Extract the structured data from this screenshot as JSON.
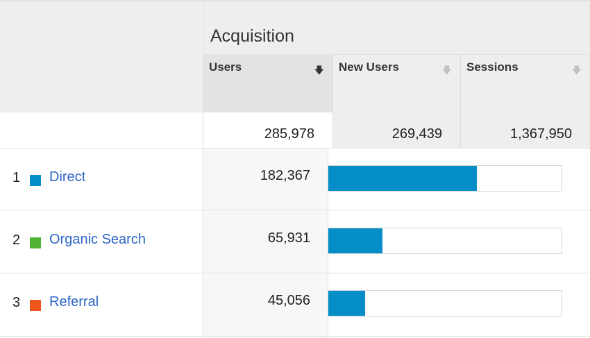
{
  "header": {
    "group_title": "Acquisition",
    "columns": [
      {
        "label": "Users",
        "sort_icon": "arrow-down-icon",
        "active": true
      },
      {
        "label": "New Users",
        "sort_icon": "arrow-down-icon",
        "active": false
      },
      {
        "label": "Sessions",
        "sort_icon": "arrow-down-icon",
        "active": false
      }
    ]
  },
  "totals": {
    "users": "285,978",
    "new_users": "269,439",
    "sessions": "1,367,950"
  },
  "rows": [
    {
      "rank": "1",
      "channel": "Direct",
      "users": "182,367",
      "swatch_color": "#058dc7",
      "share": 0.638
    },
    {
      "rank": "2",
      "channel": "Organic Search",
      "users": "65,931",
      "swatch_color": "#50b432",
      "share": 0.231
    },
    {
      "rank": "3",
      "channel": "Referral",
      "users": "45,056",
      "swatch_color": "#ed561b",
      "share": 0.158
    }
  ],
  "colors": {
    "bar": "#058dc7",
    "link": "#2b64c6"
  }
}
